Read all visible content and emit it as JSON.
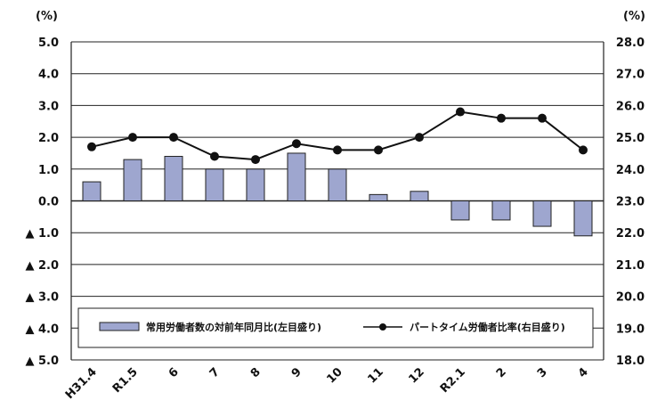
{
  "chart_data": {
    "type": "bar+line",
    "categories": [
      "H31.4",
      "R1.5",
      "6",
      "7",
      "8",
      "9",
      "10",
      "11",
      "12",
      "R2.1",
      "2",
      "3",
      "4"
    ],
    "series": [
      {
        "name": "常用労働者数の対前年同月比(左目盛り)",
        "type": "bar",
        "axis": "left",
        "values": [
          0.6,
          1.3,
          1.4,
          1.0,
          1.0,
          1.5,
          1.0,
          0.2,
          0.3,
          -0.6,
          -0.6,
          -0.8,
          -1.1
        ]
      },
      {
        "name": "パートタイム労働者比率(右目盛り)",
        "type": "line",
        "axis": "right",
        "values": [
          24.7,
          25.0,
          25.0,
          24.4,
          24.3,
          24.8,
          24.6,
          24.6,
          25.0,
          25.8,
          25.6,
          25.6,
          24.6
        ]
      }
    ],
    "left_axis": {
      "unit": "(%)",
      "ylim": [
        -5.0,
        5.0
      ],
      "ticks": [
        5.0,
        4.0,
        3.0,
        2.0,
        1.0,
        0.0,
        -1.0,
        -2.0,
        -3.0,
        -4.0,
        -5.0
      ],
      "tick_labels": [
        "5.0",
        "4.0",
        "3.0",
        "2.0",
        "1.0",
        "0.0",
        "▲ 1.0",
        "▲ 2.0",
        "▲ 3.0",
        "▲ 4.0",
        "▲ 5.0"
      ]
    },
    "right_axis": {
      "unit": "(%)",
      "ylim": [
        18.0,
        28.0
      ],
      "ticks": [
        28.0,
        27.0,
        26.0,
        25.0,
        24.0,
        23.0,
        22.0,
        21.0,
        20.0,
        19.0,
        18.0
      ],
      "tick_labels": [
        "28.0",
        "27.0",
        "26.0",
        "25.0",
        "24.0",
        "23.0",
        "22.0",
        "21.0",
        "20.0",
        "19.0",
        "18.0"
      ]
    },
    "grid": true,
    "legend_position": "bottom-inside",
    "colors": {
      "bar_fill": "#9ea6cf",
      "bar_stroke": "#222222",
      "line": "#111111",
      "grid": "#222222"
    }
  }
}
